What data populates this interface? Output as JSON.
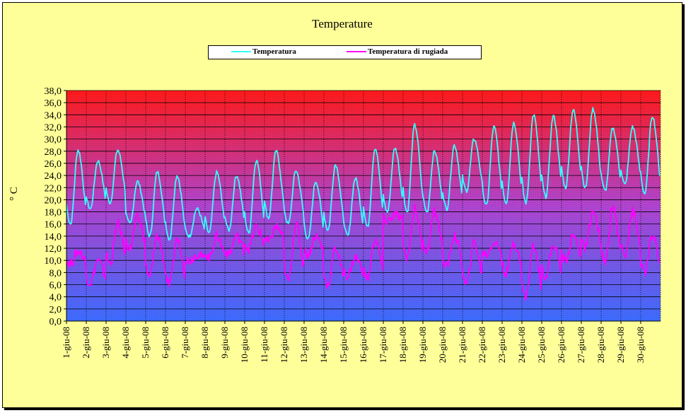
{
  "chart_data": {
    "type": "line",
    "title": "Temperature",
    "ylabel": "° C",
    "ylim": [
      0,
      38
    ],
    "ytick_labels": [
      "0,0",
      "2,0",
      "4,0",
      "6,0",
      "8,0",
      "10,0",
      "12,0",
      "14,0",
      "16,0",
      "18,0",
      "20,0",
      "22,0",
      "24,0",
      "26,0",
      "28,0",
      "30,0",
      "32,0",
      "34,0",
      "36,0",
      "38,0"
    ],
    "x_labels": [
      "1-giu-08",
      "2-giu-08",
      "3-giu-08",
      "4-giu-08",
      "5-giu-08",
      "6-giu-08",
      "7-giu-08",
      "8-giu-08",
      "9-giu-08",
      "10-giu-08",
      "11-giu-08",
      "12-giu-08",
      "13-giu-08",
      "14-giu-08",
      "15-giu-08",
      "16-giu-08",
      "17-giu-08",
      "18-giu-08",
      "19-giu-08",
      "20-giu-08",
      "21-giu-08",
      "22-giu-08",
      "23-giu-08",
      "24-giu-08",
      "25-giu-08",
      "26-giu-08",
      "27-giu-08",
      "28-giu-08",
      "29-giu-08",
      "30-giu-08"
    ],
    "grid": true,
    "legend_position": "top-center",
    "series": [
      {
        "name": "Temperatura",
        "color": "#33ffff",
        "daily_min": [
          16,
          18.5,
          19.5,
          16,
          14,
          13.5,
          14,
          14.5,
          15,
          14.5,
          17,
          16,
          13.5,
          15,
          14,
          15.5,
          18,
          18,
          18,
          18.5,
          21.5,
          19,
          19.5,
          19.5,
          20.5,
          22,
          22,
          21.5,
          22.5,
          21
        ],
        "daily_max": [
          28.2,
          26.4,
          28.2,
          23,
          24.6,
          24,
          18.5,
          24.5,
          24,
          26.5,
          28,
          24.8,
          23,
          25.8,
          23.5,
          28.5,
          28.5,
          32.3,
          28,
          29,
          30,
          32,
          32.7,
          34,
          33.8,
          34.8,
          35,
          31.8,
          32,
          33.8
        ]
      },
      {
        "name": "Temperatura di rugiada",
        "color": "#ff00ff",
        "daily_min": [
          9.5,
          6.3,
          9.5,
          12,
          7.5,
          6,
          10,
          10.5,
          11,
          12,
          13,
          6.5,
          11,
          6,
          7.5,
          7,
          16.5,
          10.5,
          11.5,
          9,
          6,
          11,
          8,
          4,
          7.5,
          10,
          12,
          9.5,
          11,
          8
        ],
        "daily_max": [
          11.5,
          10,
          16,
          17,
          14,
          13.5,
          11,
          14,
          14,
          15.5,
          15.5,
          16,
          14,
          12,
          10.5,
          13.5,
          17.5,
          18.5,
          18,
          14,
          13,
          13,
          13,
          12.5,
          12.5,
          14,
          18,
          19,
          18,
          14
        ]
      }
    ]
  }
}
